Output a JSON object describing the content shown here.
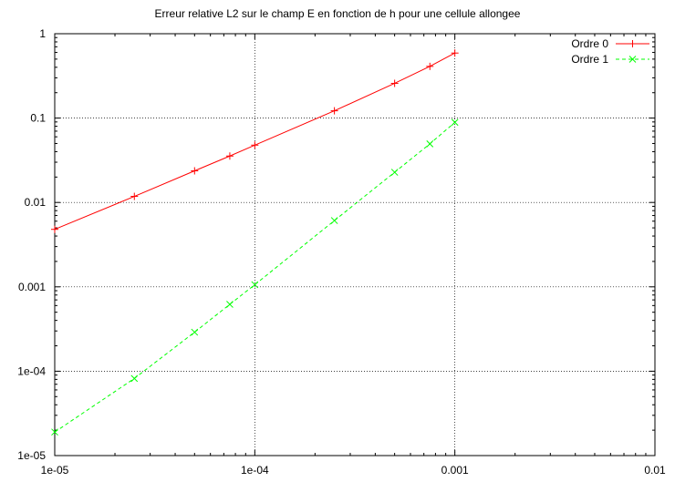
{
  "chart_data": {
    "type": "line",
    "title": "Erreur relative L2 sur le champ E en fonction de h pour une cellule allongee",
    "xlabel": "",
    "ylabel": "",
    "xscale": "log",
    "yscale": "log",
    "xlim": [
      1e-05,
      0.01
    ],
    "ylim": [
      1e-05,
      1
    ],
    "grid": true,
    "legend_position": "top-right",
    "x_ticks": [
      {
        "value": 1e-05,
        "label": "1e-05"
      },
      {
        "value": 0.0001,
        "label": "1e-04"
      },
      {
        "value": 0.001,
        "label": "0.001"
      },
      {
        "value": 0.01,
        "label": "0.01"
      }
    ],
    "y_ticks": [
      {
        "value": 1e-05,
        "label": "1e-05"
      },
      {
        "value": 0.0001,
        "label": "1e-04"
      },
      {
        "value": 0.001,
        "label": "0.001"
      },
      {
        "value": 0.01,
        "label": "0.01"
      },
      {
        "value": 0.1,
        "label": "0.1"
      },
      {
        "value": 1,
        "label": "1"
      }
    ],
    "series": [
      {
        "name": "Ordre 0",
        "color": "#ff0000",
        "marker": "plus",
        "dashed": false,
        "x": [
          1e-05,
          2.5e-05,
          5e-05,
          7.5e-05,
          0.0001,
          0.00025,
          0.0005,
          0.00075,
          0.001
        ],
        "y": [
          0.0048,
          0.0118,
          0.0237,
          0.0355,
          0.0478,
          0.122,
          0.258,
          0.41,
          0.59
        ]
      },
      {
        "name": "Ordre 1",
        "color": "#00ff00",
        "marker": "cross",
        "dashed": true,
        "x": [
          1e-05,
          2.5e-05,
          5e-05,
          7.5e-05,
          0.0001,
          0.00025,
          0.0005,
          0.00075,
          0.001
        ],
        "y": [
          1.9e-05,
          8.2e-05,
          0.00029,
          0.00062,
          0.00106,
          0.0061,
          0.0228,
          0.0495,
          0.089
        ]
      }
    ]
  }
}
